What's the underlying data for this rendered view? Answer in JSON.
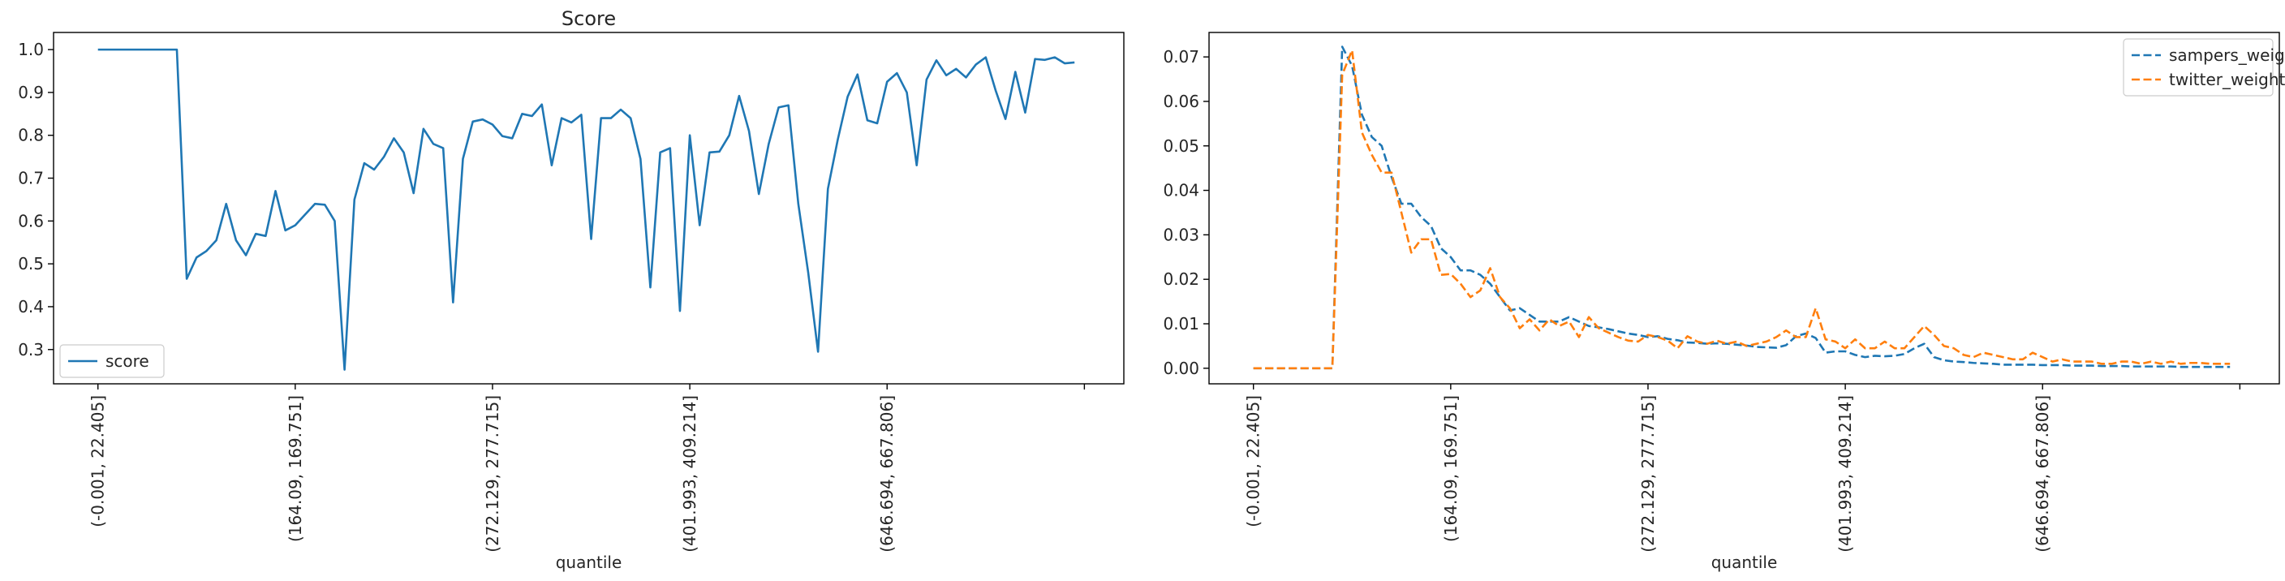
{
  "chart_data": [
    {
      "type": "line",
      "title": "Score",
      "xlabel": "quantile",
      "ylabel": "",
      "ylim": [
        0.22,
        1.04
      ],
      "yticks": [
        0.3,
        0.4,
        0.5,
        0.6,
        0.7,
        0.8,
        0.9,
        1.0
      ],
      "yticklabels": [
        "0.3",
        "0.4",
        "0.5",
        "0.6",
        "0.7",
        "0.8",
        "0.9",
        "1.0"
      ],
      "xticks": [
        0,
        20,
        40,
        60,
        80,
        100
      ],
      "xticklabels": [
        "(-0.001, 22.405]",
        "(164.09, 169.751]",
        "(272.129, 277.715]",
        "(401.993, 409.214]",
        "(646.694, 667.806]",
        ""
      ],
      "xlim": [
        -4.5,
        104
      ],
      "legend": "lower-left",
      "series": [
        {
          "name": "score",
          "color": "#1f77b4",
          "dash": "solid",
          "values": [
            1.0,
            1.0,
            1.0,
            1.0,
            1.0,
            1.0,
            1.0,
            1.0,
            1.0,
            0.465,
            0.515,
            0.53,
            0.555,
            0.64,
            0.555,
            0.52,
            0.57,
            0.565,
            0.67,
            0.578,
            0.59,
            0.615,
            0.64,
            0.638,
            0.6,
            0.253,
            0.65,
            0.735,
            0.72,
            0.75,
            0.793,
            0.76,
            0.665,
            0.815,
            0.78,
            0.77,
            0.41,
            0.745,
            0.832,
            0.837,
            0.825,
            0.798,
            0.793,
            0.85,
            0.845,
            0.872,
            0.73,
            0.84,
            0.83,
            0.848,
            0.558,
            0.84,
            0.84,
            0.86,
            0.84,
            0.745,
            0.445,
            0.76,
            0.77,
            0.39,
            0.8,
            0.59,
            0.76,
            0.762,
            0.8,
            0.892,
            0.81,
            0.663,
            0.78,
            0.865,
            0.87,
            0.64,
            0.48,
            0.295,
            0.675,
            0.79,
            0.89,
            0.942,
            0.835,
            0.828,
            0.925,
            0.945,
            0.9,
            0.73,
            0.93,
            0.975,
            0.94,
            0.955,
            0.935,
            0.965,
            0.982,
            0.905,
            0.838,
            0.948,
            0.853,
            0.978,
            0.976,
            0.982,
            0.968,
            0.97
          ]
        }
      ]
    },
    {
      "type": "line",
      "title": "",
      "xlabel": "quantile",
      "ylabel": "",
      "ylim": [
        -0.0035,
        0.0755
      ],
      "yticks": [
        0.0,
        0.01,
        0.02,
        0.03,
        0.04,
        0.05,
        0.06,
        0.07
      ],
      "yticklabels": [
        "0.00",
        "0.01",
        "0.02",
        "0.03",
        "0.04",
        "0.05",
        "0.06",
        "0.07"
      ],
      "xticks": [
        0,
        20,
        40,
        60,
        80,
        100
      ],
      "xticklabels": [
        "(-0.001, 22.405]",
        "(164.09, 169.751]",
        "(272.129, 277.715]",
        "(401.993, 409.214]",
        "(646.694, 667.806]",
        ""
      ],
      "xlim": [
        -4.5,
        104
      ],
      "legend": "top-right",
      "series": [
        {
          "name": "sampers_weight",
          "color": "#1f77b4",
          "dash": "dashed",
          "values": [
            0.0,
            0.0,
            0.0,
            0.0,
            0.0,
            0.0,
            0.0,
            0.0,
            0.0,
            0.0723,
            0.068,
            0.057,
            0.052,
            0.05,
            0.043,
            0.037,
            0.037,
            0.034,
            0.032,
            0.027,
            0.025,
            0.022,
            0.022,
            0.021,
            0.019,
            0.016,
            0.013,
            0.0135,
            0.012,
            0.0105,
            0.0105,
            0.0105,
            0.0115,
            0.0105,
            0.0095,
            0.0092,
            0.0088,
            0.0083,
            0.0078,
            0.0075,
            0.007,
            0.0072,
            0.0066,
            0.0063,
            0.0058,
            0.0057,
            0.0055,
            0.0056,
            0.0055,
            0.0053,
            0.0051,
            0.0048,
            0.0047,
            0.0046,
            0.0052,
            0.0072,
            0.0078,
            0.0068,
            0.0035,
            0.0038,
            0.0038,
            0.003,
            0.0025,
            0.0028,
            0.0027,
            0.0028,
            0.0032,
            0.0045,
            0.0055,
            0.0025,
            0.0018,
            0.0015,
            0.0014,
            0.0012,
            0.0011,
            0.001,
            0.0008,
            0.0008,
            0.0008,
            0.0008,
            0.0007,
            0.0007,
            0.0007,
            0.0006,
            0.0006,
            0.0006,
            0.0005,
            0.0005,
            0.0005,
            0.0004,
            0.0004,
            0.0004,
            0.0004,
            0.0004,
            0.0003,
            0.0003,
            0.0003,
            0.0003,
            0.0003,
            0.0003
          ]
        },
        {
          "name": "twitter_weight",
          "color": "#ff7f0e",
          "dash": "dashed",
          "values": [
            0.0,
            0.0,
            0.0,
            0.0,
            0.0,
            0.0,
            0.0,
            0.0,
            0.0,
            0.066,
            0.0715,
            0.053,
            0.048,
            0.044,
            0.044,
            0.035,
            0.026,
            0.029,
            0.029,
            0.021,
            0.0212,
            0.019,
            0.016,
            0.0175,
            0.0225,
            0.016,
            0.0135,
            0.009,
            0.011,
            0.0085,
            0.011,
            0.0095,
            0.0105,
            0.007,
            0.0115,
            0.009,
            0.008,
            0.007,
            0.0062,
            0.006,
            0.0075,
            0.007,
            0.0062,
            0.0045,
            0.0072,
            0.006,
            0.0055,
            0.0062,
            0.0055,
            0.006,
            0.005,
            0.0055,
            0.006,
            0.007,
            0.0085,
            0.007,
            0.007,
            0.0135,
            0.0065,
            0.006,
            0.0045,
            0.0065,
            0.0045,
            0.0045,
            0.006,
            0.0045,
            0.0045,
            0.007,
            0.0095,
            0.0075,
            0.005,
            0.0045,
            0.003,
            0.0025,
            0.0035,
            0.003,
            0.0025,
            0.002,
            0.002,
            0.0035,
            0.0025,
            0.0015,
            0.002,
            0.0015,
            0.0015,
            0.0015,
            0.001,
            0.001,
            0.0015,
            0.0015,
            0.001,
            0.0015,
            0.001,
            0.0015,
            0.001,
            0.0012,
            0.0012,
            0.001,
            0.001,
            0.001
          ]
        }
      ]
    }
  ]
}
